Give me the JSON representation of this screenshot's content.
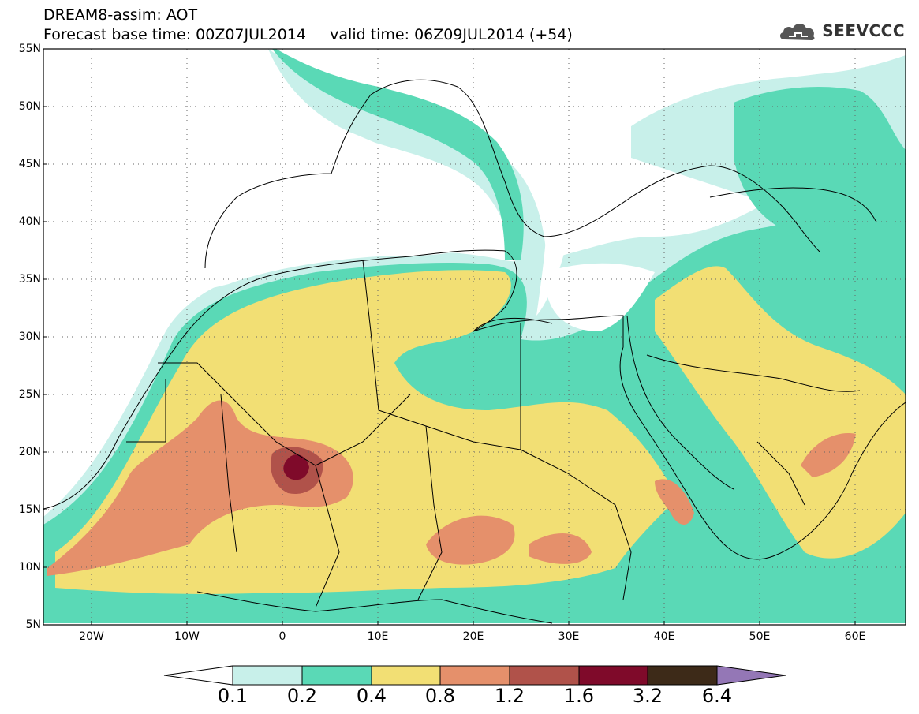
{
  "header": {
    "line1": "DREAM8-assim: AOT",
    "line2": "Forecast base time: 00Z07JUL2014     valid time: 06Z09JUL2014 (+54)"
  },
  "logo": {
    "text": "SEEVCCC",
    "icon": "cloud-icon"
  },
  "map": {
    "region": {
      "lon_min": -25,
      "lon_max": 65,
      "lat_min": 5,
      "lat_max": 55
    },
    "lat_labels": [
      "55N",
      "50N",
      "45N",
      "40N",
      "35N",
      "30N",
      "25N",
      "20N",
      "15N",
      "10N",
      "5N"
    ],
    "lon_labels": [
      "20W",
      "10W",
      "0",
      "10E",
      "20E",
      "30E",
      "40E",
      "50E",
      "60E"
    ],
    "grid": "dotted"
  },
  "colorbar": {
    "labels": [
      "0.1",
      "0.2",
      "0.4",
      "0.8",
      "1.2",
      "1.6",
      "3.2",
      "6.4"
    ],
    "colors": [
      "#c8f0ea",
      "#5ad9b6",
      "#f2df74",
      "#e5906b",
      "#b0524a",
      "#7f0a2a",
      "#3d2a18",
      "#9477b6"
    ]
  }
}
